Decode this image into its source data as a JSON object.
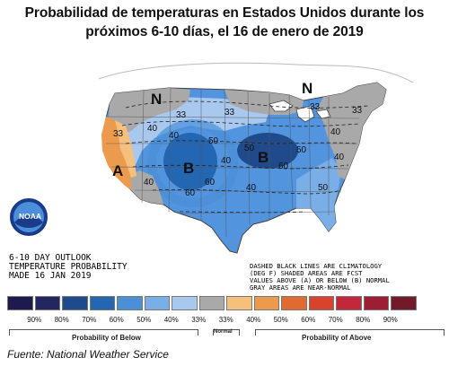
{
  "title": {
    "line1": "Probabilidad de temperaturas en Estados Unidos durante los",
    "line2": "próximos 6-10 días, el 16 de enero de 2019"
  },
  "map": {
    "category_letters": [
      "N",
      "N",
      "A",
      "B",
      "B"
    ],
    "contour_labels": [
      "33",
      "40",
      "33",
      "40",
      "50",
      "40",
      "50",
      "60",
      "33",
      "40",
      "60",
      "40",
      "60",
      "50",
      "40",
      "50",
      "33",
      "33",
      "40"
    ],
    "outlook_text": [
      "6-10 DAY OUTLOOK",
      "TEMPERATURE PROBABILITY",
      "MADE  16 JAN 2019"
    ],
    "notes_text": [
      "DASHED BLACK LINES ARE CLIMATOLOGY",
      "(DEG F) SHADED AREAS ARE FCST",
      "VALUES ABOVE (A) OR BELOW (B) NORMAL",
      "GRAY AREAS ARE NEAR-NORMAL"
    ],
    "logo_text": "NOAA"
  },
  "legend": {
    "colors": [
      "#1c1a4e",
      "#23275f",
      "#1f4a8c",
      "#2367b3",
      "#4a8fd8",
      "#7aaee6",
      "#a8c8ee",
      "#a9a9a9",
      "#f4c07c",
      "#eb9a4e",
      "#e06a2f",
      "#d9432b",
      "#c2283a",
      "#9f1d33",
      "#721a2a"
    ],
    "percents": [
      "90%",
      "80%",
      "70%",
      "60%",
      "50%",
      "40%",
      "33%",
      "33%",
      "40%",
      "50%",
      "60%",
      "70%",
      "80%",
      "90%"
    ],
    "below_label": "Probability of Below",
    "normal_label": "Normal",
    "above_label": "Probability of Above"
  },
  "source": "Fuente: National Weather Service"
}
